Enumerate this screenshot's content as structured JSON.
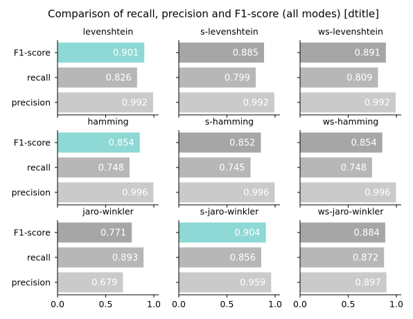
{
  "chart_data": {
    "type": "bar",
    "orientation": "horizontal",
    "title": "Comparison of recall, precision and F1-score (all modes) [dtitle]",
    "categories": [
      "F1-score",
      "recall",
      "precision"
    ],
    "xlim": [
      0,
      1.05
    ],
    "xticks": [
      {
        "value": 0.0,
        "label": "0.0"
      },
      {
        "value": 0.5,
        "label": "0.5"
      },
      {
        "value": 1.0,
        "label": "1.0"
      }
    ],
    "grid": false,
    "colors": {
      "highlight": "#8ed8d5",
      "F1-score": "#a6a6a6",
      "recall": "#b7b7b7",
      "precision": "#cacaca"
    },
    "panels": [
      {
        "title": "levenshtein",
        "values": [
          0.901,
          0.826,
          0.992
        ],
        "labels": [
          "0.901",
          "0.826",
          "0.992"
        ],
        "highlight": true
      },
      {
        "title": "s-levenshtein",
        "values": [
          0.885,
          0.799,
          0.992
        ],
        "labels": [
          "0.885",
          "0.799",
          "0.992"
        ],
        "highlight": false
      },
      {
        "title": "ws-levenshtein",
        "values": [
          0.891,
          0.809,
          0.992
        ],
        "labels": [
          "0.891",
          "0.809",
          "0.992"
        ],
        "highlight": false
      },
      {
        "title": "hamming",
        "values": [
          0.854,
          0.748,
          0.996
        ],
        "labels": [
          "0.854",
          "0.748",
          "0.996"
        ],
        "highlight": true
      },
      {
        "title": "s-hamming",
        "values": [
          0.852,
          0.745,
          0.996
        ],
        "labels": [
          "0.852",
          "0.745",
          "0.996"
        ],
        "highlight": false
      },
      {
        "title": "ws-hamming",
        "values": [
          0.854,
          0.748,
          0.996
        ],
        "labels": [
          "0.854",
          "0.748",
          "0.996"
        ],
        "highlight": false
      },
      {
        "title": "jaro-winkler",
        "values": [
          0.771,
          0.893,
          0.679
        ],
        "labels": [
          "0.771",
          "0.893",
          "0.679"
        ],
        "highlight": false
      },
      {
        "title": "s-jaro-winkler",
        "values": [
          0.904,
          0.856,
          0.959
        ],
        "labels": [
          "0.904",
          "0.856",
          "0.959"
        ],
        "highlight": true
      },
      {
        "title": "ws-jaro-winkler",
        "values": [
          0.884,
          0.872,
          0.897
        ],
        "labels": [
          "0.884",
          "0.872",
          "0.897"
        ],
        "highlight": false
      }
    ]
  }
}
